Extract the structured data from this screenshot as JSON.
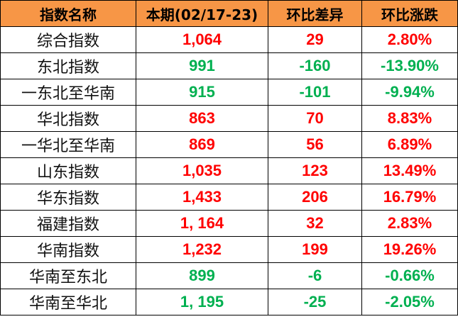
{
  "headers": [
    "指数名称",
    "本期(02/17-23)",
    "环比差异",
    "环比涨跌"
  ],
  "colors": {
    "header_bg": "#F79646",
    "up": "#FF0000",
    "down": "#00B050"
  },
  "rows": [
    {
      "name": "综合指数",
      "current": "1,064",
      "diff": "29",
      "pct": "2.80%",
      "trend": "up"
    },
    {
      "name": "东北指数",
      "current": "991",
      "diff": "-160",
      "pct": "-13.90%",
      "trend": "down"
    },
    {
      "name": "一东北至华南",
      "current": "915",
      "diff": "-101",
      "pct": "-9.94%",
      "trend": "down"
    },
    {
      "name": "华北指数",
      "current": "863",
      "diff": "70",
      "pct": "8.83%",
      "trend": "up"
    },
    {
      "name": "一华北至华南",
      "current": "869",
      "diff": "56",
      "pct": "6.89%",
      "trend": "up"
    },
    {
      "name": "山东指数",
      "current": "1,035",
      "diff": "123",
      "pct": "13.49%",
      "trend": "up"
    },
    {
      "name": "华东指数",
      "current": "1,433",
      "diff": "206",
      "pct": "16.79%",
      "trend": "up"
    },
    {
      "name": "福建指数",
      "current": "1, 164",
      "diff": "32",
      "pct": "2.83%",
      "trend": "up"
    },
    {
      "name": "华南指数",
      "current": "1,232",
      "diff": "199",
      "pct": "19.26%",
      "trend": "up"
    },
    {
      "name": "华南至东北",
      "current": "899",
      "diff": "-6",
      "pct": "-0.66%",
      "trend": "down"
    },
    {
      "name": "华南至华北",
      "current": "1, 195",
      "diff": "-25",
      "pct": "-2.05%",
      "trend": "down"
    }
  ]
}
